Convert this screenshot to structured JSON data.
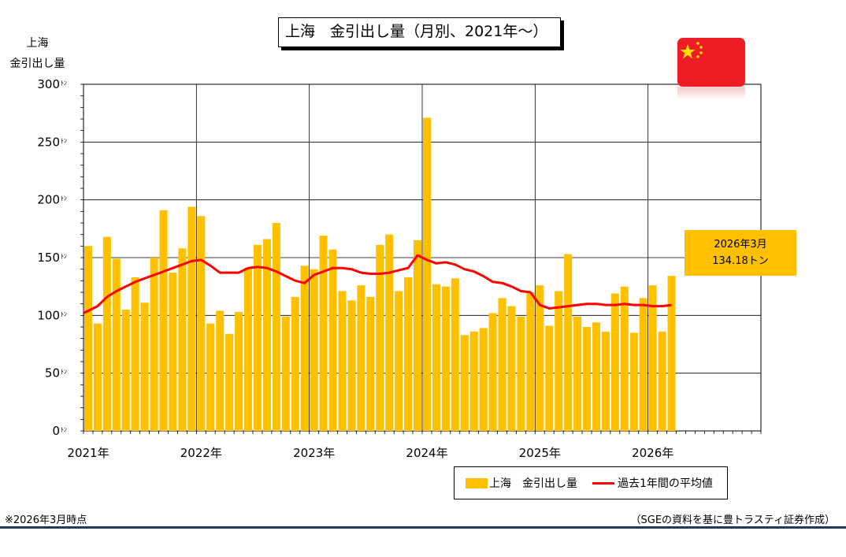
{
  "title": "上海　金引出し量（月別、2021年〜）",
  "ylabel_line1": "上海",
  "ylabel_line2": "金引出し量",
  "callout": {
    "line1": "2026年3月",
    "line2": "134.18トン"
  },
  "legend": {
    "bar_label": "上海　金引出し量",
    "line_label": "過去1年間の平均値"
  },
  "footnote_left": "※2026年3月時点",
  "footnote_right": "（SGEの資料を基に豊トラスティ証券作成）",
  "flag_icon": "china-flag-icon",
  "colors": {
    "bar": "#FFC000",
    "line": "#FF0000",
    "grid": "#000000",
    "rule": "#1F3864"
  },
  "chart_data": {
    "type": "bar",
    "ylim": [
      0,
      300
    ],
    "yticks": [
      0,
      50,
      100,
      150,
      200,
      250,
      300
    ],
    "ytick_unit": "ﾄﾝ",
    "year_labels": [
      "2021年",
      "2022年",
      "2023年",
      "2024年",
      "2025年",
      "2026年"
    ],
    "x_range_months": 72,
    "grid": true,
    "legend_position": "bottom-right",
    "categories": [
      "2021-01",
      "2021-02",
      "2021-03",
      "2021-04",
      "2021-05",
      "2021-06",
      "2021-07",
      "2021-08",
      "2021-09",
      "2021-10",
      "2021-11",
      "2021-12",
      "2022-01",
      "2022-02",
      "2022-03",
      "2022-04",
      "2022-05",
      "2022-06",
      "2022-07",
      "2022-08",
      "2022-09",
      "2022-10",
      "2022-11",
      "2022-12",
      "2023-01",
      "2023-02",
      "2023-03",
      "2023-04",
      "2023-05",
      "2023-06",
      "2023-07",
      "2023-08",
      "2023-09",
      "2023-10",
      "2023-11",
      "2023-12",
      "2024-01",
      "2024-02",
      "2024-03",
      "2024-04",
      "2024-05",
      "2024-06",
      "2024-07",
      "2024-08",
      "2024-09",
      "2024-10",
      "2024-11",
      "2024-12",
      "2025-01",
      "2025-02",
      "2025-03",
      "2025-04",
      "2025-05",
      "2025-06",
      "2025-07",
      "2025-08",
      "2025-09",
      "2025-10",
      "2025-11",
      "2025-12",
      "2026-01",
      "2026-02",
      "2026-03"
    ],
    "series": [
      {
        "name": "上海　金引出し量",
        "type": "bar",
        "values": [
          160,
          93,
          168,
          149,
          105,
          133,
          111,
          150,
          191,
          137,
          158,
          194,
          186,
          93,
          104,
          84,
          103,
          141,
          161,
          166,
          180,
          99,
          116,
          143,
          140,
          169,
          157,
          121,
          113,
          126,
          116,
          161,
          170,
          121,
          133,
          165,
          271,
          127,
          125,
          132,
          83,
          86,
          89,
          102,
          115,
          108,
          99,
          120,
          126,
          91,
          121,
          153,
          99,
          90,
          94,
          86,
          119,
          125,
          85,
          115,
          126,
          86,
          134.18
        ]
      },
      {
        "name": "過去1年間の平均値",
        "type": "line",
        "values": [
          102,
          108,
          116,
          121,
          125,
          129,
          132,
          135,
          138,
          141,
          144,
          147,
          148,
          143,
          137,
          137,
          137,
          141,
          142,
          141,
          138,
          134,
          130,
          128,
          135,
          138,
          141,
          141,
          140,
          137,
          136,
          136,
          137,
          139,
          141,
          152,
          148,
          145,
          146,
          144,
          140,
          138,
          134,
          129,
          128,
          125,
          121,
          120,
          109,
          106,
          107,
          108,
          109,
          110,
          110,
          109,
          109,
          110,
          109,
          109,
          108,
          108,
          109
        ]
      }
    ]
  }
}
